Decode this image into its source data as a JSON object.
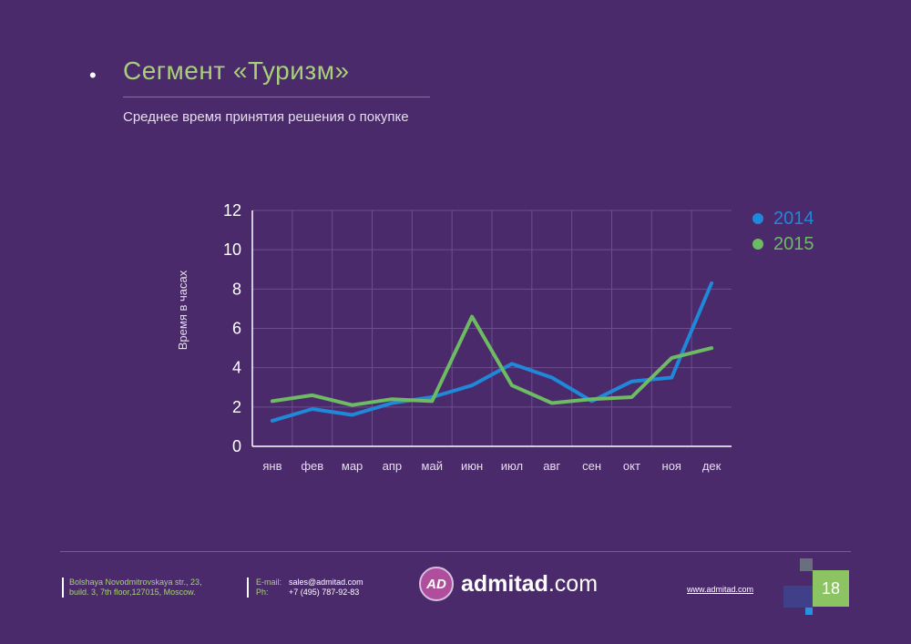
{
  "title": "Сегмент «Туризм»",
  "subtitle": "Среднее время принятия решения о покупке",
  "chart_data": {
    "type": "line",
    "ylabel": "Время в часах",
    "ylim": [
      0,
      12
    ],
    "yticks": [
      0,
      2,
      4,
      6,
      8,
      10,
      12
    ],
    "categories": [
      "янв",
      "фев",
      "мар",
      "апр",
      "май",
      "июн",
      "июл",
      "авг",
      "сен",
      "окт",
      "ноя",
      "дек"
    ],
    "grid": true,
    "legend_position": "top-right",
    "series": [
      {
        "name": "2014",
        "color": "#1f88d8",
        "values": [
          1.3,
          1.9,
          1.6,
          2.2,
          2.5,
          3.1,
          4.2,
          3.5,
          2.3,
          3.3,
          3.5,
          8.3
        ]
      },
      {
        "name": "2015",
        "color": "#6dbb62",
        "values": [
          2.3,
          2.6,
          2.1,
          2.4,
          2.3,
          6.6,
          3.1,
          2.2,
          2.4,
          2.5,
          4.5,
          5.0
        ]
      }
    ]
  },
  "footer": {
    "address_line1": "Bolshaya Novodmitrovskaya str., 23,",
    "address_line2": "build. 3, 7th floor,127015, Moscow.",
    "email_label": "E-mail:",
    "email_value": "sales@admitad.com",
    "phone_label": "Ph:",
    "phone_value": "+7 (495) 787-92-83",
    "logo_badge": "AD",
    "logo_text_bold": "admitad",
    "logo_text_rest": ".com",
    "website": "www.admitad.com",
    "page_number": "18"
  }
}
